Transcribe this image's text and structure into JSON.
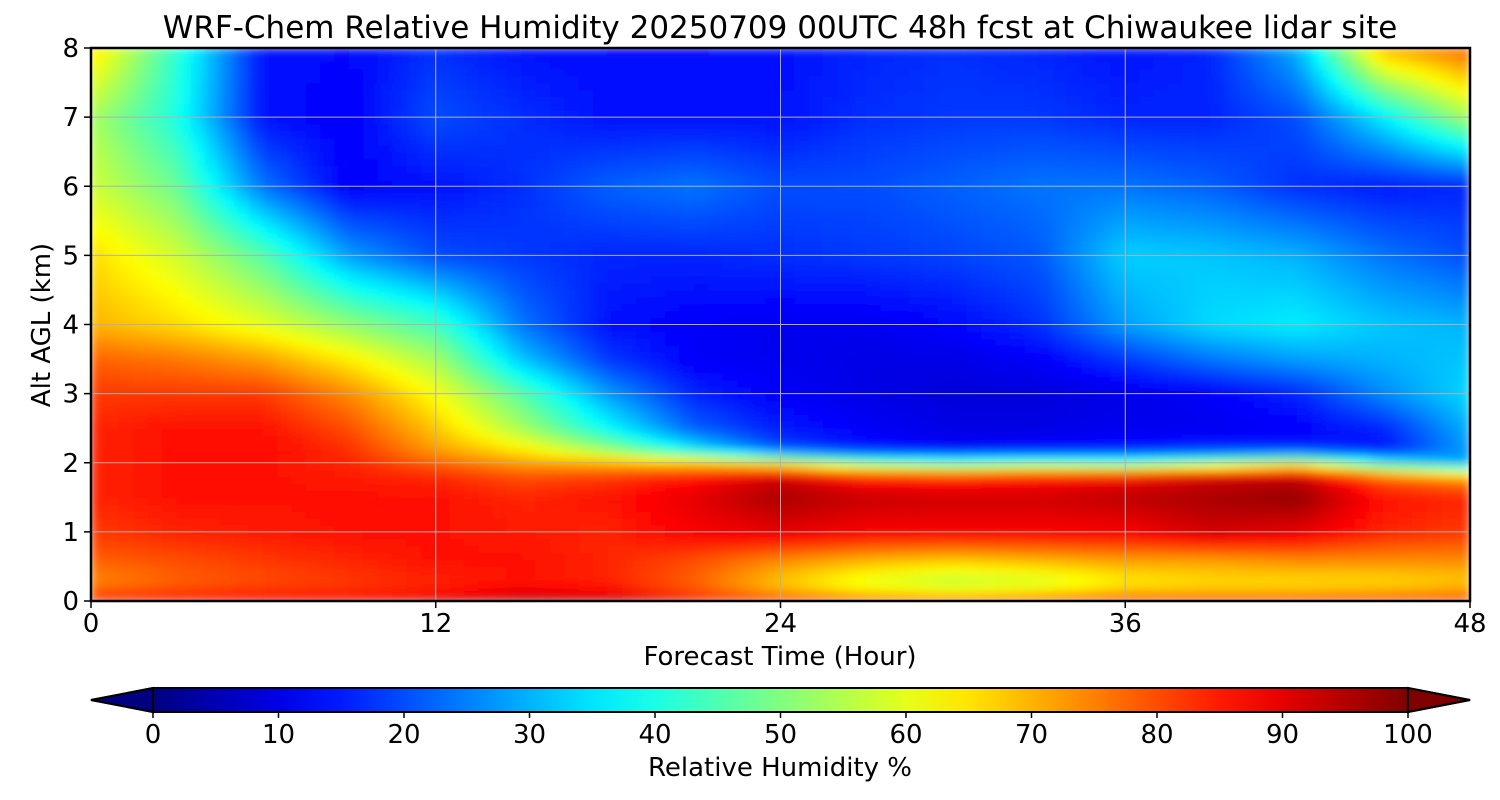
{
  "chart_data": {
    "type": "heatmap",
    "title": "WRF-Chem Relative Humidity 20250709 00UTC 48h fcst at Chiwaukee lidar site",
    "xlabel": "Forecast Time (Hour)",
    "ylabel": "Alt AGL (km)",
    "xlim": [
      0,
      48
    ],
    "ylim": [
      0,
      8
    ],
    "x_ticks": [
      0,
      12,
      24,
      36,
      48
    ],
    "y_ticks": [
      0,
      1,
      2,
      3,
      4,
      5,
      6,
      7,
      8
    ],
    "grid": true,
    "colormap": "jet",
    "colorbar": {
      "label": "Relative Humidity %",
      "orientation": "horizontal",
      "placement": "bottom",
      "range": [
        0,
        100
      ],
      "ticks": [
        0,
        10,
        20,
        30,
        40,
        50,
        60,
        70,
        80,
        90,
        100
      ],
      "extend": "both"
    },
    "x": [
      0,
      3,
      6,
      9,
      12,
      15,
      18,
      21,
      24,
      27,
      30,
      33,
      36,
      39,
      42,
      45,
      48
    ],
    "y": [
      0,
      0.1,
      0.3,
      0.6,
      1.0,
      1.5,
      1.8,
      2.0,
      2.2,
      2.5,
      3.0,
      3.5,
      4.0,
      5.0,
      6.0,
      7.0,
      8.0
    ],
    "z": [
      [
        88,
        90,
        92,
        92,
        93,
        97,
        98,
        96,
        92,
        88,
        87,
        88,
        92,
        92,
        93,
        90,
        88
      ],
      [
        80,
        82,
        84,
        84,
        86,
        90,
        88,
        80,
        72,
        66,
        64,
        66,
        70,
        70,
        70,
        72,
        74
      ],
      [
        74,
        78,
        80,
        82,
        84,
        86,
        84,
        78,
        68,
        60,
        56,
        58,
        64,
        66,
        66,
        66,
        68
      ],
      [
        78,
        80,
        82,
        84,
        86,
        86,
        84,
        80,
        74,
        70,
        68,
        70,
        72,
        72,
        74,
        74,
        74
      ],
      [
        82,
        84,
        85,
        86,
        86,
        85,
        84,
        88,
        90,
        88,
        88,
        88,
        88,
        92,
        90,
        84,
        82
      ],
      [
        84,
        86,
        86,
        86,
        86,
        84,
        86,
        90,
        96,
        93,
        92,
        92,
        94,
        96,
        98,
        86,
        84
      ],
      [
        84,
        86,
        86,
        85,
        84,
        80,
        82,
        86,
        92,
        85,
        84,
        86,
        88,
        92,
        93,
        78,
        72
      ],
      [
        84,
        86,
        86,
        84,
        78,
        72,
        70,
        68,
        62,
        50,
        45,
        48,
        45,
        52,
        60,
        40,
        28
      ],
      [
        84,
        86,
        87,
        83,
        72,
        64,
        52,
        36,
        20,
        14,
        12,
        13,
        14,
        16,
        16,
        14,
        28
      ],
      [
        84,
        86,
        86,
        80,
        68,
        54,
        38,
        22,
        15,
        12,
        10,
        10,
        11,
        11,
        12,
        16,
        30
      ],
      [
        82,
        82,
        82,
        74,
        62,
        46,
        28,
        16,
        12,
        10,
        9,
        9,
        10,
        12,
        16,
        26,
        34
      ],
      [
        78,
        76,
        72,
        64,
        54,
        32,
        18,
        12,
        11,
        10,
        10,
        12,
        18,
        24,
        28,
        30,
        32
      ],
      [
        70,
        66,
        60,
        52,
        44,
        24,
        14,
        12,
        11,
        11,
        13,
        17,
        28,
        34,
        36,
        32,
        30
      ],
      [
        66,
        58,
        46,
        28,
        20,
        18,
        16,
        16,
        17,
        18,
        19,
        21,
        33,
        32,
        30,
        24,
        20
      ],
      [
        58,
        48,
        24,
        12,
        14,
        17,
        22,
        24,
        20,
        20,
        22,
        24,
        24,
        22,
        17,
        15,
        16
      ],
      [
        54,
        40,
        14,
        12,
        20,
        17,
        14,
        14,
        14,
        17,
        18,
        18,
        16,
        16,
        20,
        36,
        54
      ],
      [
        66,
        42,
        14,
        13,
        17,
        14,
        13,
        13,
        14,
        16,
        17,
        16,
        14,
        16,
        30,
        70,
        78
      ]
    ]
  }
}
